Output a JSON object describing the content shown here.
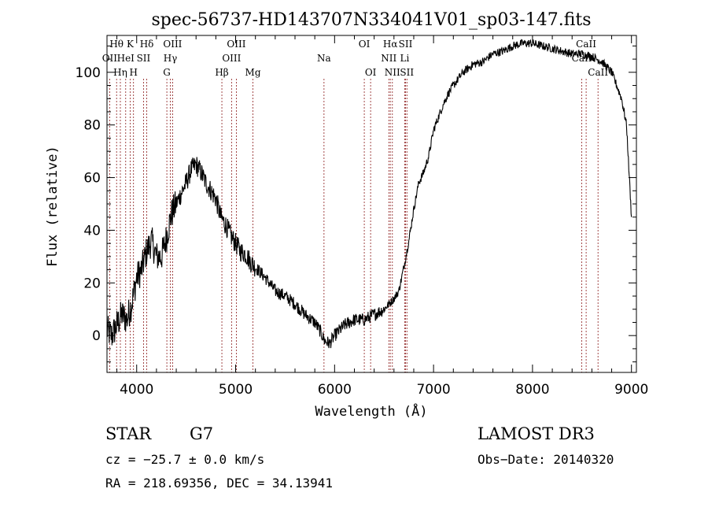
{
  "chart_data": {
    "type": "line",
    "title": "spec-56737-HD143707N334041V01_sp03-147.fits",
    "xlabel": "Wavelength (Å)",
    "ylabel": "Flux (relative)",
    "xlim": [
      3700,
      9050
    ],
    "ylim": [
      -14,
      114
    ],
    "x_ticks": [
      4000,
      5000,
      6000,
      7000,
      8000,
      9000
    ],
    "y_ticks": [
      0,
      20,
      40,
      60,
      80,
      100
    ],
    "series": [
      {
        "name": "flux",
        "x": [
          3700,
          3750,
          3800,
          3850,
          3900,
          3950,
          4000,
          4050,
          4100,
          4150,
          4200,
          4250,
          4300,
          4350,
          4400,
          4450,
          4500,
          4550,
          4600,
          4650,
          4700,
          4750,
          4800,
          4850,
          4900,
          4950,
          5000,
          5050,
          5100,
          5150,
          5200,
          5300,
          5400,
          5500,
          5600,
          5700,
          5800,
          5850,
          5900,
          5950,
          6000,
          6050,
          6100,
          6150,
          6200,
          6250,
          6300,
          6350,
          6400,
          6450,
          6500,
          6550,
          6600,
          6650,
          6700,
          6750,
          6800,
          6850,
          6900,
          6950,
          7000,
          7050,
          7100,
          7150,
          7200,
          7300,
          7400,
          7500,
          7600,
          7700,
          7800,
          7900,
          8000,
          8100,
          8200,
          8300,
          8400,
          8500,
          8600,
          8700,
          8800,
          8850,
          8900,
          8950,
          9000
        ],
        "y": [
          2,
          0,
          4,
          8,
          6,
          12,
          22,
          25,
          32,
          36,
          30,
          30,
          37,
          46,
          50,
          54,
          58,
          63,
          65,
          62,
          58,
          55,
          52,
          45,
          42,
          38,
          35,
          32,
          31,
          28,
          26,
          22,
          17,
          15,
          12,
          8,
          5,
          2,
          -2,
          -3,
          0,
          2,
          4,
          5,
          6,
          6,
          6,
          7,
          8,
          9,
          10,
          12,
          14,
          17,
          26,
          36,
          48,
          58,
          62,
          68,
          78,
          83,
          88,
          92,
          95,
          100,
          103,
          104,
          107,
          108,
          110,
          111,
          111,
          110,
          109,
          108,
          107,
          107,
          106,
          104,
          100,
          95,
          90,
          80,
          45
        ]
      }
    ],
    "line_markers": [
      {
        "label": "Hθ",
        "x": 3797,
        "row": 0
      },
      {
        "label": "OII",
        "x": 3727,
        "row": 1
      },
      {
        "label": "Hη",
        "x": 3835,
        "row": 2
      },
      {
        "label": "K",
        "x": 3934,
        "row": 0
      },
      {
        "label": "HeI",
        "x": 3889,
        "row": 1
      },
      {
        "label": "H",
        "x": 3968,
        "row": 2
      },
      {
        "label": "Hδ",
        "x": 4102,
        "row": 0
      },
      {
        "label": "SII",
        "x": 4069,
        "row": 1
      },
      {
        "label": "OIII",
        "x": 4363,
        "row": 0
      },
      {
        "label": "Hγ",
        "x": 4340,
        "row": 1
      },
      {
        "label": "G",
        "x": 4305,
        "row": 2
      },
      {
        "label": "OIII",
        "x": 5007,
        "row": 0
      },
      {
        "label": "OIII",
        "x": 4959,
        "row": 1
      },
      {
        "label": "Hβ",
        "x": 4861,
        "row": 2
      },
      {
        "label": "Mg",
        "x": 5175,
        "row": 2
      },
      {
        "label": "Na",
        "x": 5893,
        "row": 1
      },
      {
        "label": "OI",
        "x": 6300,
        "row": 0
      },
      {
        "label": "OI",
        "x": 6364,
        "row": 2
      },
      {
        "label": "Hα",
        "x": 6563,
        "row": 0
      },
      {
        "label": "SII",
        "x": 6717,
        "row": 0
      },
      {
        "label": "NII",
        "x": 6548,
        "row": 1
      },
      {
        "label": "Li",
        "x": 6708,
        "row": 1
      },
      {
        "label": "NII",
        "x": 6584,
        "row": 2
      },
      {
        "label": "SII",
        "x": 6731,
        "row": 2
      },
      {
        "label": "CaII",
        "x": 8542,
        "row": 0
      },
      {
        "label": "CaII",
        "x": 8498,
        "row": 1
      },
      {
        "label": "CaII",
        "x": 8662,
        "row": 2
      }
    ]
  },
  "info": {
    "class_label": "STAR",
    "subclass": "G7",
    "survey": "LAMOST DR3",
    "cz": "cz = −25.7 ± 0.0 km/s",
    "obs_date": "Obs−Date: 20140320",
    "coords": "RA = 218.69356, DEC =  34.13941"
  },
  "colors": {
    "spectrum": "#000000",
    "marker": "#8b1a1a",
    "axis": "#000000"
  }
}
